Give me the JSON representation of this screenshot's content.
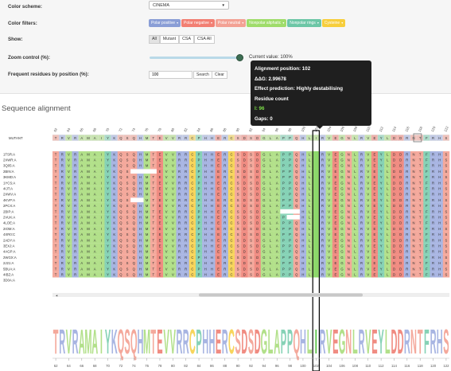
{
  "settings": {
    "color_scheme_label": "Color scheme:",
    "color_scheme_value": "CINEMA",
    "color_filters_label": "Color filters:",
    "filters": [
      {
        "label": "Polar positive",
        "color": "#8a9ed6"
      },
      {
        "label": "Polar negative",
        "color": "#f27f73"
      },
      {
        "label": "Polar neutral",
        "color": "#f3a194"
      },
      {
        "label": "Nonpolar aliphatic",
        "color": "#9fdc6a"
      },
      {
        "label": "Nonpolar rings",
        "color": "#6cc6a6"
      },
      {
        "label": "Cysteine",
        "color": "#f7ce3c"
      }
    ],
    "show_label": "Show:",
    "show_options": [
      "All",
      "Mutant",
      "CSA",
      "CSA All"
    ],
    "zoom_label": "Zoom control (%):",
    "zoom_value_text": "Current value: 100%",
    "zoom_percent": 100,
    "freq_label": "Frequent residues by position (%):",
    "freq_value": "100",
    "search_label": "Search",
    "clear_label": "Clear"
  },
  "section_title": "Sequence alignment",
  "alignment": {
    "mutant_label": "MUTANT",
    "positions_top": [
      "62",
      "64",
      "66",
      "68",
      "70",
      "72",
      "74",
      "76",
      "78",
      "80",
      "82",
      "84",
      "86",
      "88",
      "90",
      "92",
      "94",
      "96",
      "98",
      "100",
      "102",
      "104",
      "106",
      "108",
      "110",
      "112",
      "114",
      "116",
      "118",
      "120",
      "122"
    ],
    "positions_bottom": [
      "62",
      "64",
      "66",
      "68",
      "70",
      "72",
      "74",
      "76",
      "78",
      "80",
      "82",
      "84",
      "86",
      "88",
      "90",
      "92",
      "94",
      "96",
      "98",
      "100",
      "102",
      "104",
      "106",
      "108",
      "110",
      "112",
      "114",
      "116",
      "118",
      "120",
      "122"
    ],
    "sequences": [
      "1TSR:A",
      "2XWR:A",
      "3Q05:A",
      "2BIN:A",
      "3KMD:A",
      "1YCS:A",
      "4IJT:A",
      "2XWV:A",
      "4KVP:A",
      "2PCX:A",
      "2BIP:A",
      "2VUK:A",
      "4LOE:A",
      "2IOM:A",
      "4XR0:C",
      "2ADY:A",
      "3EXJ:A",
      "4AGP:A",
      "2WGX:A",
      "2J21:A",
      "5BUA:A",
      "4IBZ:A",
      "3D0A:A"
    ],
    "consensus_seq": "TRVRAMAIYKQSQHMTEVVRRCPHHERCSDSDGLAPPQHLIRVEGNLRVEYLDDRNTFRHS",
    "mutant_seq": "TRVRAMAIYKQSQHMTEVVRRCPHHERCSDSDGLAPPQHLIRVEGNLRVEYLDDRNTFRHS"
  },
  "tooltip": {
    "position_text": "Alignment position: 102",
    "ddg_text": "ΔΔG: 2.99678",
    "effect_text": "Effect prediction: Highly destabilising",
    "residue_count_text": "Residue count",
    "i_count_text": "I: 96",
    "gaps_text": "Gaps: 0"
  }
}
